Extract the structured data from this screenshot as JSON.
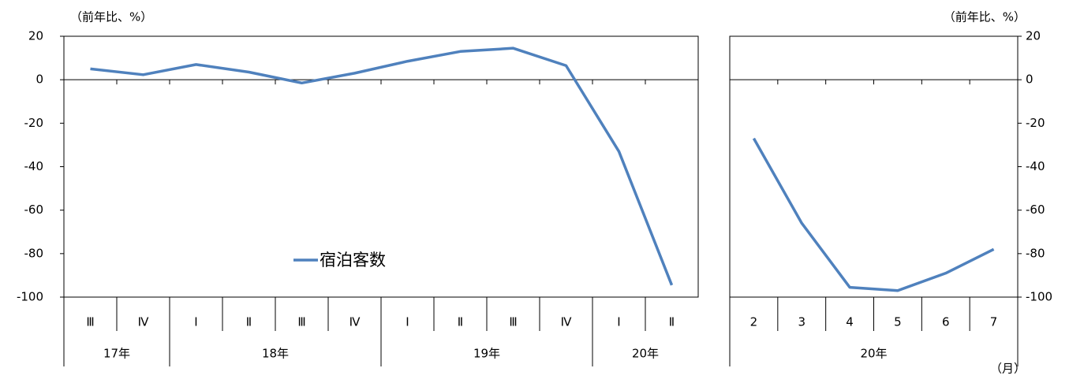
{
  "chart_data": [
    {
      "type": "line",
      "y_label": "（前年比、%）",
      "categories": [
        "Ⅲ",
        "Ⅳ",
        "Ⅰ",
        "Ⅱ",
        "Ⅲ",
        "Ⅳ",
        "Ⅰ",
        "Ⅱ",
        "Ⅲ",
        "Ⅳ",
        "Ⅰ",
        "Ⅱ"
      ],
      "groups": [
        "17年",
        null,
        "18年",
        null,
        null,
        null,
        "19年",
        null,
        null,
        null,
        "20年",
        null
      ],
      "series": [
        {
          "name": "宿泊客数",
          "color": "#4f81bd",
          "values": [
            5,
            2.3,
            7,
            3.5,
            -1.5,
            3,
            8.5,
            13,
            14.5,
            6.5,
            -33,
            -94.5
          ]
        }
      ],
      "ylim": [
        -100,
        20
      ],
      "yticks": [
        -100,
        -80,
        -60,
        -40,
        -20,
        0,
        20
      ],
      "y_axis_side": "left"
    },
    {
      "type": "line",
      "y_label": "（前年比、%）",
      "x_label": "（月）",
      "categories": [
        "2",
        "3",
        "4",
        "5",
        "6",
        "7"
      ],
      "groups": [
        "20年",
        null,
        null,
        null,
        null,
        null
      ],
      "series": [
        {
          "color": "#4f81bd",
          "values": [
            -27,
            -66,
            -95.5,
            -97,
            -89,
            -78
          ]
        }
      ],
      "ylim": [
        -100,
        20
      ],
      "yticks": [
        -100,
        -80,
        -60,
        -40,
        -20,
        0,
        20
      ],
      "y_axis_side": "right"
    }
  ]
}
